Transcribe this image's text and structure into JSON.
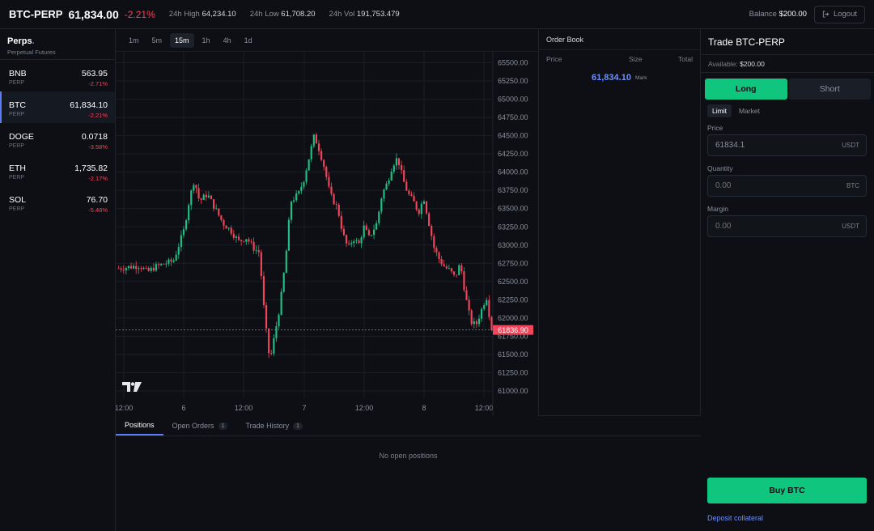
{
  "topbar": {
    "symbol": "BTC-PERP",
    "price": "61,834.00",
    "change": "-2.21%",
    "high_label": "24h High",
    "high_value": "64,234.10",
    "low_label": "24h Low",
    "low_value": "61,708.20",
    "vol_label": "24h Vol",
    "vol_value": "191,753.479",
    "balance_label": "Balance",
    "balance_value": "$200.00",
    "logout_label": "Logout"
  },
  "sidebar": {
    "title": "Perps",
    "title_dot": ".",
    "subtitle": "Perpetual Futures",
    "markets": [
      {
        "symbol": "BNB",
        "type": "PERP",
        "price": "563.95",
        "change": "-2.71%"
      },
      {
        "symbol": "BTC",
        "type": "PERP",
        "price": "61,834.10",
        "change": "-2.21%"
      },
      {
        "symbol": "DOGE",
        "type": "PERP",
        "price": "0.0718",
        "change": "-3.58%"
      },
      {
        "symbol": "ETH",
        "type": "PERP",
        "price": "1,735.82",
        "change": "-2.17%"
      },
      {
        "symbol": "SOL",
        "type": "PERP",
        "price": "76.70",
        "change": "-5.48%"
      }
    ]
  },
  "timeframes": [
    "1m",
    "5m",
    "15m",
    "1h",
    "4h",
    "1d"
  ],
  "active_timeframe": "15m",
  "chart_data": {
    "type": "candlestick",
    "y_ticks": [
      "65500.00",
      "65250.00",
      "65000.00",
      "64750.00",
      "64500.00",
      "64250.00",
      "64000.00",
      "63750.00",
      "63500.00",
      "63250.00",
      "63000.00",
      "62750.00",
      "62500.00",
      "62250.00",
      "62000.00",
      "61750.00",
      "61500.00",
      "61250.00",
      "61000.00"
    ],
    "ylim": [
      60900,
      65650
    ],
    "x_ticks": [
      "12:00",
      "6",
      "12:00",
      "7",
      "12:00",
      "8",
      "12:00"
    ],
    "last_price": "61836.90",
    "last_price_value": 61836.9,
    "path": [
      [
        0,
        62680
      ],
      [
        4,
        62700
      ],
      [
        8,
        62720
      ],
      [
        11,
        62630
      ],
      [
        14,
        62700
      ],
      [
        18,
        62750
      ],
      [
        21,
        62780
      ],
      [
        25,
        63200
      ],
      [
        27,
        63600
      ],
      [
        29,
        63900
      ],
      [
        31,
        63600
      ],
      [
        34,
        63700
      ],
      [
        37,
        63500
      ],
      [
        40,
        63300
      ],
      [
        43,
        63200
      ],
      [
        46,
        63050
      ],
      [
        49,
        63100
      ],
      [
        52,
        62950
      ],
      [
        54,
        62900
      ],
      [
        56,
        62000
      ],
      [
        58,
        61400
      ],
      [
        60,
        61800
      ],
      [
        62,
        62200
      ],
      [
        64,
        62800
      ],
      [
        66,
        63600
      ],
      [
        69,
        63700
      ],
      [
        71,
        63900
      ],
      [
        73,
        64200
      ],
      [
        75,
        64500
      ],
      [
        77,
        64300
      ],
      [
        79,
        64050
      ],
      [
        81,
        63700
      ],
      [
        84,
        63500
      ],
      [
        86,
        63150
      ],
      [
        88,
        62950
      ],
      [
        90,
        63100
      ],
      [
        92,
        63000
      ],
      [
        94,
        63250
      ],
      [
        96,
        63100
      ],
      [
        99,
        63300
      ],
      [
        101,
        63700
      ],
      [
        103,
        63850
      ],
      [
        105,
        64100
      ],
      [
        107,
        64200
      ],
      [
        109,
        63900
      ],
      [
        111,
        63700
      ],
      [
        113,
        63600
      ],
      [
        115,
        63450
      ],
      [
        117,
        63650
      ],
      [
        119,
        63300
      ],
      [
        121,
        62950
      ],
      [
        123,
        62800
      ],
      [
        125,
        62700
      ],
      [
        127,
        62650
      ],
      [
        129,
        62550
      ],
      [
        131,
        62750
      ],
      [
        133,
        62300
      ],
      [
        135,
        61950
      ],
      [
        137,
        61900
      ],
      [
        139,
        62100
      ],
      [
        141,
        62300
      ],
      [
        143,
        61836.9
      ]
    ]
  },
  "orderbook": {
    "title": "Order Book",
    "col_price": "Price",
    "col_size": "Size",
    "col_total": "Total",
    "mark_price": "61,834.10",
    "mark_label": "Mark"
  },
  "bottom_tabs": [
    {
      "label": "Positions",
      "badge": ""
    },
    {
      "label": "Open Orders",
      "badge": "1"
    },
    {
      "label": "Trade History",
      "badge": "1"
    }
  ],
  "positions_empty": "No open positions",
  "trade": {
    "title": "Trade BTC-PERP",
    "available_label": "Available:",
    "available_value": "$200.00",
    "long_label": "Long",
    "short_label": "Short",
    "limit_label": "Limit",
    "market_label": "Market",
    "price_label": "Price",
    "price_value": "61834.1",
    "price_unit": "USDT",
    "quantity_label": "Quantity",
    "quantity_placeholder": "0.00",
    "quantity_unit": "BTC",
    "margin_label": "Margin",
    "margin_placeholder": "0.00",
    "margin_unit": "USDT",
    "buy_label": "Buy BTC",
    "deposit_label": "Deposit collateral"
  },
  "colors": {
    "up": "#1fbf85",
    "down": "#f0455a",
    "accent": "#5b7cf5",
    "long": "#10c57e"
  },
  "icons": {
    "logout": "logout-icon",
    "tradingview": "tradingview-logo"
  }
}
